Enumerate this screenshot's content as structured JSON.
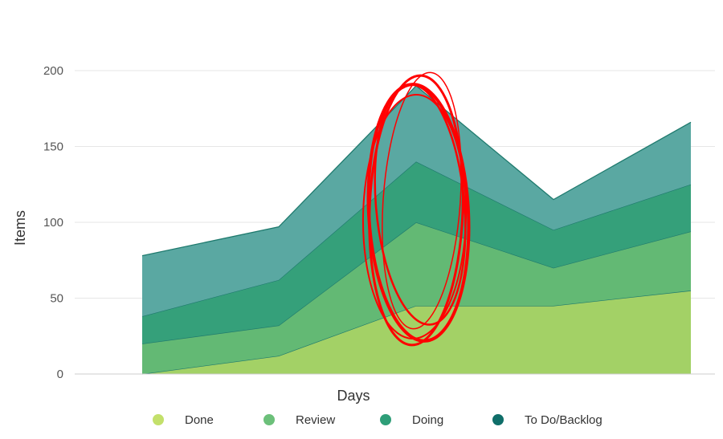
{
  "chart_data": {
    "type": "area",
    "stacked": true,
    "title": "",
    "xlabel": "Days",
    "ylabel": "Items",
    "ylim": [
      0,
      200
    ],
    "yticks": [
      0,
      50,
      100,
      150,
      200
    ],
    "grid": true,
    "legend_position": "bottom",
    "categories": [
      "",
      "",
      "",
      "",
      ""
    ],
    "series": [
      {
        "name": "Done",
        "values": [
          0,
          12,
          45,
          45,
          55
        ],
        "color": "#a3d166"
      },
      {
        "name": "Review",
        "values": [
          20,
          20,
          55,
          25,
          39
        ],
        "color": "#63b974"
      },
      {
        "name": "Doing",
        "values": [
          18,
          30,
          40,
          25,
          31
        ],
        "color": "#35a07a"
      },
      {
        "name": "To Do/Backlog",
        "values": [
          40,
          35,
          50,
          20,
          41
        ],
        "color": "#5aa8a2"
      }
    ],
    "legend_marker_colors": [
      "#c3e06b",
      "#6cc07a",
      "#2e9e78",
      "#0f6e69"
    ],
    "line_color": "#1f7a6e",
    "annotation": {
      "shape": "hand-drawn ellipse",
      "color": "#ff0000",
      "around_category_index": 2
    }
  }
}
